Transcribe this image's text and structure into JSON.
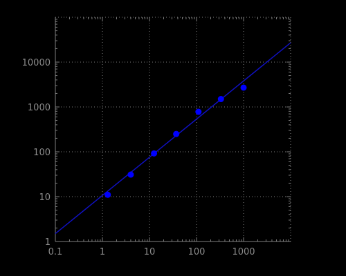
{
  "chart_data": {
    "type": "scatter",
    "x_scale": "log",
    "y_scale": "log",
    "xlim": [
      0.1,
      10000
    ],
    "ylim": [
      1,
      100000
    ],
    "x_ticks": [
      {
        "value": 0.1,
        "label": "0.1"
      },
      {
        "value": 1,
        "label": "1"
      },
      {
        "value": 10,
        "label": "10"
      },
      {
        "value": 100,
        "label": "100"
      },
      {
        "value": 1000,
        "label": "1000"
      }
    ],
    "y_ticks": [
      {
        "value": 1,
        "label": "1"
      },
      {
        "value": 10,
        "label": "10"
      },
      {
        "value": 100,
        "label": "100"
      },
      {
        "value": 1000,
        "label": "1000"
      },
      {
        "value": 10000,
        "label": "10000"
      }
    ],
    "grid": true,
    "series": [
      {
        "points": [
          {
            "x": 1.3,
            "y": 11
          },
          {
            "x": 4,
            "y": 31
          },
          {
            "x": 12.5,
            "y": 92
          },
          {
            "x": 37,
            "y": 250
          },
          {
            "x": 110,
            "y": 780
          },
          {
            "x": 330,
            "y": 1500
          },
          {
            "x": 1000,
            "y": 2700
          }
        ],
        "color": "#0000ff"
      }
    ],
    "fit_line": {
      "points": [
        {
          "x": 0.1,
          "y": 1.5
        },
        {
          "x": 10000,
          "y": 27000
        }
      ],
      "color": "#1010c0"
    },
    "colors": {
      "background": "#000000",
      "axis": "#808080",
      "grid": "#808080",
      "tick_text": "#8c8c8c"
    }
  }
}
